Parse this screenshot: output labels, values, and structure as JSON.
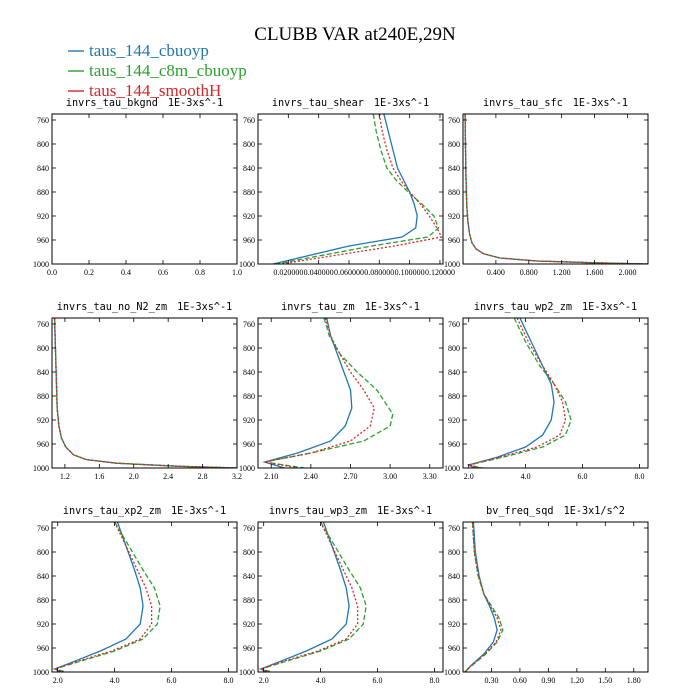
{
  "title": "CLUBB VAR at240E,29N",
  "legend": [
    {
      "name": "taus_144_cbuoyp",
      "color": "#1f77b4",
      "dash": "solid"
    },
    {
      "name": "taus_144_c8m_cbuoyp",
      "color": "#2ca02c",
      "dash": "dashed"
    },
    {
      "name": "taus_144_smoothH",
      "color": "#d62728",
      "dash": "dotted"
    }
  ],
  "chart_data": [
    {
      "type": "line",
      "title": "invrs_tau_bkgnd",
      "units": "1E-3xs^-1",
      "xlim": [
        0,
        1
      ],
      "ylim": [
        1000,
        750
      ],
      "xticks": [
        "0.0",
        "0.2",
        "0.4",
        "0.6",
        "0.8",
        "1.0"
      ],
      "xtick_values": [
        0,
        0.2,
        0.4,
        0.6,
        0.8,
        1.0
      ],
      "yticks": [
        760,
        800,
        840,
        880,
        920,
        960,
        1000
      ],
      "series": []
    },
    {
      "type": "line",
      "title": "invrs_tau_shear",
      "units": "1E-3xs^-1",
      "xlim": [
        0.0,
        0.122
      ],
      "ylim": [
        1000,
        750
      ],
      "xticks": [
        "0.020000",
        "0.040000",
        "0.060000",
        "0.080000",
        "0.100000",
        "0.120000"
      ],
      "xtick_values": [
        0.02,
        0.04,
        0.06,
        0.08,
        0.1,
        0.12
      ],
      "yticks": [
        760,
        800,
        840,
        880,
        920,
        960,
        1000
      ],
      "series": [
        {
          "name": "taus_144_cbuoyp",
          "color": "#1f77b4",
          "dash": "solid",
          "x": [
            0.083,
            0.086,
            0.089,
            0.092,
            0.096,
            0.1,
            0.103,
            0.105,
            0.104,
            0.095,
            0.06,
            0.01
          ],
          "y": [
            750,
            780,
            810,
            840,
            860,
            880,
            900,
            920,
            940,
            955,
            970,
            1000
          ]
        },
        {
          "name": "taus_144_c8m_cbuoyp",
          "color": "#2ca02c",
          "dash": "dashed",
          "x": [
            0.076,
            0.078,
            0.081,
            0.085,
            0.091,
            0.099,
            0.108,
            0.116,
            0.119,
            0.112,
            0.075,
            0.012
          ],
          "y": [
            750,
            780,
            810,
            840,
            860,
            880,
            900,
            920,
            940,
            955,
            970,
            1000
          ]
        },
        {
          "name": "taus_144_smoothH",
          "color": "#d62728",
          "dash": "dotted",
          "x": [
            0.08,
            0.082,
            0.085,
            0.089,
            0.094,
            0.1,
            0.107,
            0.113,
            0.118,
            0.121,
            0.09,
            0.015
          ],
          "y": [
            750,
            780,
            810,
            840,
            860,
            880,
            900,
            920,
            940,
            955,
            970,
            1000
          ]
        }
      ]
    },
    {
      "type": "line",
      "title": "invrs_tau_sfc",
      "units": "1E-3xs^-1",
      "xlim": [
        0.0,
        2.25
      ],
      "ylim": [
        1000,
        750
      ],
      "xticks": [
        "0.400",
        "0.800",
        "1.200",
        "1.600",
        "2.000"
      ],
      "xtick_values": [
        0.4,
        0.8,
        1.2,
        1.6,
        2.0
      ],
      "yticks": [
        760,
        800,
        840,
        880,
        920,
        960,
        1000
      ],
      "series": [
        {
          "name": "taus_144_cbuoyp",
          "color": "#1f77b4",
          "dash": "solid",
          "x": [
            0.025,
            0.03,
            0.035,
            0.045,
            0.06,
            0.08,
            0.11,
            0.16,
            0.25,
            0.45,
            0.9,
            1.6,
            2.25
          ],
          "y": [
            750,
            800,
            850,
            900,
            930,
            950,
            965,
            975,
            983,
            990,
            995,
            998,
            1000
          ]
        },
        {
          "name": "taus_144_c8m_cbuoyp",
          "color": "#2ca02c",
          "dash": "dashed",
          "x": [
            0.025,
            0.03,
            0.035,
            0.045,
            0.06,
            0.08,
            0.11,
            0.16,
            0.25,
            0.45,
            0.9,
            1.6,
            2.25
          ],
          "y": [
            750,
            800,
            850,
            900,
            930,
            950,
            965,
            975,
            983,
            990,
            995,
            998,
            1000
          ]
        },
        {
          "name": "taus_144_smoothH",
          "color": "#d62728",
          "dash": "dotted",
          "x": [
            0.025,
            0.03,
            0.035,
            0.045,
            0.06,
            0.08,
            0.11,
            0.16,
            0.25,
            0.45,
            0.9,
            1.6,
            2.25
          ],
          "y": [
            750,
            800,
            850,
            900,
            930,
            950,
            965,
            975,
            983,
            990,
            995,
            998,
            1000
          ]
        }
      ]
    },
    {
      "type": "line",
      "title": "invrs_tau_no_N2_zm",
      "units": "1E-3xs^-1",
      "xlim": [
        1.05,
        3.2
      ],
      "ylim": [
        1000,
        750
      ],
      "xticks": [
        "1.2",
        "1.6",
        "2.0",
        "2.4",
        "2.8",
        "3.2"
      ],
      "xtick_values": [
        1.2,
        1.6,
        2.0,
        2.4,
        2.8,
        3.2
      ],
      "yticks": [
        760,
        800,
        840,
        880,
        920,
        960,
        1000
      ],
      "series": [
        {
          "name": "taus_144_cbuoyp",
          "color": "#1f77b4",
          "dash": "solid",
          "x": [
            1.08,
            1.09,
            1.1,
            1.11,
            1.13,
            1.16,
            1.21,
            1.3,
            1.45,
            1.8,
            2.5,
            3.2
          ],
          "y": [
            750,
            800,
            850,
            900,
            930,
            950,
            965,
            978,
            986,
            992,
            997,
            1000
          ]
        },
        {
          "name": "taus_144_c8m_cbuoyp",
          "color": "#2ca02c",
          "dash": "dashed",
          "x": [
            1.08,
            1.09,
            1.1,
            1.11,
            1.13,
            1.16,
            1.21,
            1.3,
            1.45,
            1.8,
            2.5,
            3.2
          ],
          "y": [
            750,
            800,
            850,
            900,
            930,
            950,
            965,
            978,
            986,
            992,
            997,
            1000
          ]
        },
        {
          "name": "taus_144_smoothH",
          "color": "#d62728",
          "dash": "dotted",
          "x": [
            1.08,
            1.09,
            1.1,
            1.11,
            1.13,
            1.16,
            1.21,
            1.3,
            1.45,
            1.8,
            2.5,
            3.2
          ],
          "y": [
            750,
            800,
            850,
            900,
            930,
            950,
            965,
            978,
            986,
            992,
            997,
            1000
          ]
        }
      ]
    },
    {
      "type": "line",
      "title": "invrs_tau_zm",
      "units": "1E-3xs^-1",
      "xlim": [
        2.0,
        3.4
      ],
      "ylim": [
        1000,
        750
      ],
      "xticks": [
        "2.10",
        "2.40",
        "2.70",
        "3.00",
        "3.30"
      ],
      "xtick_values": [
        2.1,
        2.4,
        2.7,
        3.0,
        3.3
      ],
      "yticks": [
        760,
        800,
        840,
        880,
        920,
        960,
        1000
      ],
      "series": [
        {
          "name": "taus_144_cbuoyp",
          "color": "#1f77b4",
          "dash": "solid",
          "x": [
            2.52,
            2.55,
            2.6,
            2.65,
            2.7,
            2.71,
            2.66,
            2.55,
            2.3,
            2.05,
            2.2
          ],
          "y": [
            750,
            780,
            810,
            840,
            870,
            900,
            930,
            955,
            975,
            990,
            1000
          ]
        },
        {
          "name": "taus_144_c8m_cbuoyp",
          "color": "#2ca02c",
          "dash": "dashed",
          "x": [
            2.5,
            2.54,
            2.62,
            2.75,
            2.9,
            3.02,
            3.0,
            2.8,
            2.4,
            2.05,
            2.35
          ],
          "y": [
            750,
            780,
            810,
            840,
            870,
            910,
            930,
            955,
            975,
            990,
            1000
          ]
        },
        {
          "name": "taus_144_smoothH",
          "color": "#d62728",
          "dash": "dotted",
          "x": [
            2.51,
            2.55,
            2.62,
            2.7,
            2.8,
            2.88,
            2.85,
            2.7,
            2.4,
            2.05,
            2.3
          ],
          "y": [
            750,
            780,
            810,
            840,
            870,
            900,
            930,
            955,
            975,
            990,
            1000
          ]
        }
      ]
    },
    {
      "type": "line",
      "title": "invrs_tau_wp2_zm",
      "units": "1E-3xs^-1",
      "xlim": [
        1.8,
        8.3
      ],
      "ylim": [
        1000,
        750
      ],
      "xticks": [
        "2.0",
        "4.0",
        "6.0",
        "8.0"
      ],
      "xtick_values": [
        2.0,
        4.0,
        6.0,
        8.0
      ],
      "yticks": [
        760,
        800,
        840,
        880,
        920,
        960,
        1000
      ],
      "series": [
        {
          "name": "taus_144_cbuoyp",
          "color": "#1f77b4",
          "dash": "solid",
          "x": [
            3.8,
            4.2,
            4.6,
            4.9,
            5.0,
            4.9,
            4.6,
            4.0,
            3.0,
            2.0,
            2.2
          ],
          "y": [
            750,
            790,
            830,
            860,
            890,
            920,
            945,
            965,
            982,
            995,
            1000
          ]
        },
        {
          "name": "taus_144_c8m_cbuoyp",
          "color": "#2ca02c",
          "dash": "dashed",
          "x": [
            3.6,
            4.0,
            4.5,
            5.0,
            5.4,
            5.6,
            5.4,
            4.6,
            3.2,
            2.0,
            2.5
          ],
          "y": [
            750,
            790,
            830,
            860,
            890,
            920,
            945,
            965,
            982,
            995,
            1000
          ]
        },
        {
          "name": "taus_144_smoothH",
          "color": "#d62728",
          "dash": "dotted",
          "x": [
            3.7,
            4.1,
            4.6,
            5.0,
            5.3,
            5.4,
            5.2,
            4.4,
            3.1,
            2.0,
            2.4
          ],
          "y": [
            750,
            790,
            830,
            860,
            890,
            920,
            945,
            965,
            982,
            995,
            1000
          ]
        }
      ]
    },
    {
      "type": "line",
      "title": "invrs_tau_xp2_zm",
      "units": "1E-3xs^-1",
      "xlim": [
        1.8,
        8.3
      ],
      "ylim": [
        1000,
        750
      ],
      "xticks": [
        "2.0",
        "4.0",
        "6.0",
        "8.0"
      ],
      "xtick_values": [
        2.0,
        4.0,
        6.0,
        8.0
      ],
      "yticks": [
        760,
        800,
        840,
        880,
        920,
        960,
        1000
      ],
      "series": [
        {
          "name": "taus_144_cbuoyp",
          "color": "#1f77b4",
          "dash": "solid",
          "x": [
            4.1,
            4.4,
            4.7,
            4.9,
            5.0,
            4.9,
            4.4,
            3.5,
            2.6,
            1.9,
            2.1
          ],
          "y": [
            750,
            790,
            830,
            860,
            890,
            920,
            945,
            965,
            982,
            995,
            1000
          ]
        },
        {
          "name": "taus_144_c8m_cbuoyp",
          "color": "#2ca02c",
          "dash": "dashed",
          "x": [
            4.0,
            4.5,
            5.0,
            5.4,
            5.6,
            5.5,
            5.0,
            4.0,
            2.8,
            1.9,
            2.3
          ],
          "y": [
            750,
            790,
            830,
            860,
            890,
            920,
            945,
            965,
            982,
            995,
            1000
          ]
        },
        {
          "name": "taus_144_smoothH",
          "color": "#d62728",
          "dash": "dotted",
          "x": [
            4.0,
            4.4,
            4.8,
            5.1,
            5.3,
            5.3,
            4.9,
            3.9,
            2.7,
            1.9,
            2.2
          ],
          "y": [
            750,
            790,
            830,
            860,
            890,
            920,
            945,
            965,
            982,
            995,
            1000
          ]
        }
      ]
    },
    {
      "type": "line",
      "title": "invrs_tau_wp3_zm",
      "units": "1E-3xs^-1",
      "xlim": [
        1.8,
        8.3
      ],
      "ylim": [
        1000,
        750
      ],
      "xticks": [
        "2.0",
        "4.0",
        "6.0",
        "8.0"
      ],
      "xtick_values": [
        2.0,
        4.0,
        6.0,
        8.0
      ],
      "yticks": [
        760,
        800,
        840,
        880,
        920,
        960,
        1000
      ],
      "series": [
        {
          "name": "taus_144_cbuoyp",
          "color": "#1f77b4",
          "dash": "solid",
          "x": [
            4.1,
            4.4,
            4.7,
            4.9,
            5.0,
            4.9,
            4.4,
            3.5,
            2.6,
            1.9,
            2.1
          ],
          "y": [
            750,
            790,
            830,
            860,
            890,
            920,
            945,
            965,
            982,
            995,
            1000
          ]
        },
        {
          "name": "taus_144_c8m_cbuoyp",
          "color": "#2ca02c",
          "dash": "dashed",
          "x": [
            4.0,
            4.5,
            5.0,
            5.4,
            5.6,
            5.5,
            5.0,
            4.0,
            2.8,
            1.9,
            2.3
          ],
          "y": [
            750,
            790,
            830,
            860,
            890,
            920,
            945,
            965,
            982,
            995,
            1000
          ]
        },
        {
          "name": "taus_144_smoothH",
          "color": "#d62728",
          "dash": "dotted",
          "x": [
            4.0,
            4.4,
            4.8,
            5.1,
            5.3,
            5.3,
            4.9,
            3.9,
            2.7,
            1.9,
            2.2
          ],
          "y": [
            750,
            790,
            830,
            860,
            890,
            920,
            945,
            965,
            982,
            995,
            1000
          ]
        }
      ]
    },
    {
      "type": "line",
      "title": "bv_freq_sqd",
      "units": "1E-3x1/s^2",
      "xlim": [
        0.0,
        1.95
      ],
      "ylim": [
        1000,
        750
      ],
      "xticks": [
        "0.30",
        "0.60",
        "0.90",
        "1.20",
        "1.50",
        "1.80"
      ],
      "xtick_values": [
        0.3,
        0.6,
        0.9,
        1.2,
        1.5,
        1.8
      ],
      "yticks": [
        760,
        800,
        840,
        880,
        920,
        960,
        1000
      ],
      "series": [
        {
          "name": "taus_144_cbuoyp",
          "color": "#1f77b4",
          "dash": "solid",
          "x": [
            0.11,
            0.13,
            0.17,
            0.22,
            0.28,
            0.33,
            0.36,
            0.32,
            0.22,
            0.08,
            0.02
          ],
          "y": [
            750,
            800,
            840,
            870,
            890,
            910,
            930,
            950,
            970,
            990,
            1000
          ]
        },
        {
          "name": "taus_144_c8m_cbuoyp",
          "color": "#2ca02c",
          "dash": "dashed",
          "x": [
            0.1,
            0.12,
            0.16,
            0.22,
            0.3,
            0.38,
            0.42,
            0.36,
            0.24,
            0.09,
            0.02
          ],
          "y": [
            750,
            800,
            840,
            870,
            890,
            910,
            930,
            950,
            970,
            990,
            1000
          ]
        },
        {
          "name": "taus_144_smoothH",
          "color": "#d62728",
          "dash": "dotted",
          "x": [
            0.1,
            0.12,
            0.16,
            0.22,
            0.29,
            0.36,
            0.4,
            0.35,
            0.23,
            0.08,
            0.02
          ],
          "y": [
            750,
            800,
            840,
            870,
            890,
            910,
            930,
            950,
            970,
            990,
            1000
          ]
        }
      ]
    }
  ]
}
